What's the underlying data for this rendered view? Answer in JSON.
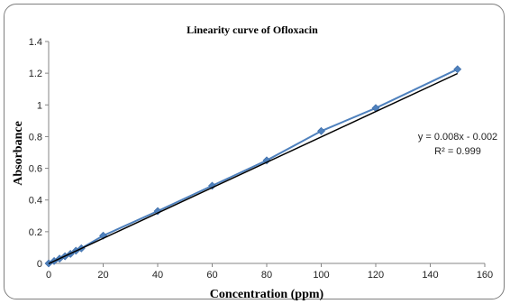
{
  "chart_data": {
    "type": "scatter",
    "title": "Linearity curve of Ofloxacin",
    "xlabel": "Concentration (ppm)",
    "ylabel": "Absorbance",
    "xlim": [
      0,
      160
    ],
    "ylim": [
      0,
      1.4
    ],
    "xticks": [
      "0",
      "20",
      "40",
      "60",
      "80",
      "100",
      "120",
      "140",
      "160"
    ],
    "yticks": [
      "0",
      "0.2",
      "0.4",
      "0.6",
      "0.8",
      "1",
      "1.2",
      "1.4"
    ],
    "grid": false,
    "legend": "none",
    "series": [
      {
        "marker": "diamond",
        "color": "#4F81BD",
        "x": [
          0,
          2,
          4,
          6,
          8,
          10,
          12,
          20,
          40,
          60,
          80,
          100,
          120,
          150
        ],
        "y": [
          0,
          0.015,
          0.03,
          0.045,
          0.06,
          0.08,
          0.095,
          0.175,
          0.33,
          0.49,
          0.65,
          0.835,
          0.98,
          1.225
        ]
      }
    ],
    "trendline": {
      "color": "#000000",
      "slope": 0.008,
      "intercept": -0.002,
      "x_range": [
        0,
        150
      ],
      "equation": "y = 0.008x - 0.002",
      "r_squared": "R² = 0.999"
    }
  }
}
